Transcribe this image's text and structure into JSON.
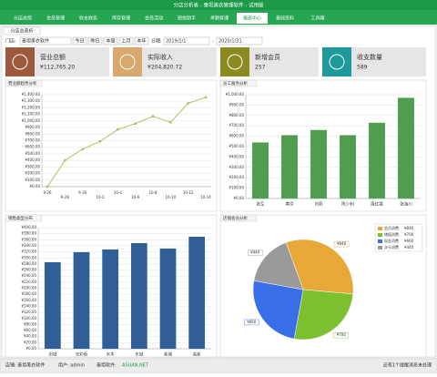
{
  "window_title": "分店分析表 - 泰坦美衣管理软件 - 试用版",
  "menu": [
    "分店总揽",
    "会员管理",
    "收支财务",
    "库存管理",
    "会员活动",
    "短信助手",
    "考勤管理",
    "报表中心",
    "基础资料",
    "工具箱"
  ],
  "active_menu": 7,
  "tab": "分店总表析",
  "toolbar": {
    "store_label": "门店:",
    "store": "泰坦美衣软件",
    "buttons": [
      "今日",
      "昨日",
      "本周",
      "上月",
      "本年"
    ],
    "date_label": "日期:",
    "date_from": "2019/1/1",
    "date_sep": "-",
    "date_to": "2020/1/31"
  },
  "kpis": [
    {
      "label": "营业总额",
      "value": "¥112,765.20",
      "color": "#9c5a3c"
    },
    {
      "label": "实际收入",
      "value": "¥204,820.72",
      "color": "#d8a86c"
    },
    {
      "label": "新增会员",
      "value": "257",
      "color": "#8a8a1e"
    },
    {
      "label": "收支数量",
      "value": "589",
      "color": "#1f9a9a"
    }
  ],
  "chart_data": [
    {
      "type": "line",
      "title": "营业额趋势分析",
      "categories": [
        "9-26",
        "9-28",
        "9-30",
        "10-2",
        "10-4",
        "10-6",
        "10-8",
        "10-10",
        "10-12",
        "10-14"
      ],
      "values": [
        0,
        400,
        570,
        690,
        870,
        960,
        1070,
        980,
        1270,
        1360
      ],
      "color": "#a9c46a",
      "ylim": [
        0,
        1400
      ],
      "yticks": [
        {
          "value": 0,
          "label": "¥0.00"
        },
        {
          "value": 100,
          "label": "¥100.00"
        },
        {
          "value": 200,
          "label": "¥200.00"
        },
        {
          "value": 300,
          "label": "¥300.00"
        },
        {
          "value": 400,
          "label": "¥400.00"
        },
        {
          "value": 500,
          "label": "¥500.00"
        },
        {
          "value": 600,
          "label": "¥600.00"
        },
        {
          "value": 700,
          "label": "¥700.00"
        },
        {
          "value": 800,
          "label": "¥800.00"
        },
        {
          "value": 900,
          "label": "¥900.00"
        },
        {
          "value": 1000,
          "label": "¥1,000.00"
        },
        {
          "value": 1100,
          "label": "¥1,100.00"
        },
        {
          "value": 1200,
          "label": "¥1,200.00"
        },
        {
          "value": 1300,
          "label": "¥1,300.00"
        },
        {
          "value": 1400,
          "label": "¥1,400.00"
        }
      ],
      "grid": true
    },
    {
      "type": "bar",
      "title": "员工服务分析",
      "categories": [
        "张军",
        "黄玲",
        "刘莉",
        "陈少利",
        "唐红霞",
        "张海川"
      ],
      "values": [
        540,
        610,
        660,
        610,
        730,
        970
      ],
      "color": "#4e9e4e",
      "ylim": [
        0,
        1000
      ],
      "yticks": [
        {
          "value": 0,
          "label": "¥0.00"
        },
        {
          "value": 100,
          "label": "¥100.00"
        },
        {
          "value": 200,
          "label": "¥200.00"
        },
        {
          "value": 300,
          "label": "¥300.00"
        },
        {
          "value": 400,
          "label": "¥400.00"
        },
        {
          "value": 500,
          "label": "¥500.00"
        },
        {
          "value": 600,
          "label": "¥600.00"
        },
        {
          "value": 700,
          "label": "¥700.00"
        },
        {
          "value": 800,
          "label": "¥800.00"
        },
        {
          "value": 900,
          "label": "¥900.00"
        },
        {
          "value": 1000,
          "label": "¥1,000.00"
        }
      ],
      "grid": true
    },
    {
      "type": "bar",
      "title": "销售类型分布",
      "categories": [
        "旧城",
        "光彩街",
        "水木",
        "东城",
        "新城",
        "高新"
      ],
      "values": [
        286,
        319,
        328,
        349,
        331,
        370
      ],
      "color": "#2f5f96",
      "ylim": [
        0,
        400
      ],
      "yticks": [
        {
          "value": 0,
          "label": "¥0.00"
        },
        {
          "value": 20,
          "label": "¥20.00"
        },
        {
          "value": 40,
          "label": "¥40.00"
        },
        {
          "value": 60,
          "label": "¥60.00"
        },
        {
          "value": 80,
          "label": "¥80.00"
        },
        {
          "value": 100,
          "label": "¥100.00"
        },
        {
          "value": 120,
          "label": "¥120.00"
        },
        {
          "value": 140,
          "label": "¥140.00"
        },
        {
          "value": 160,
          "label": "¥160.00"
        },
        {
          "value": 180,
          "label": "¥180.00"
        },
        {
          "value": 200,
          "label": "¥200.00"
        },
        {
          "value": 220,
          "label": "¥220.00"
        },
        {
          "value": 240,
          "label": "¥240.00"
        },
        {
          "value": 260,
          "label": "¥260.00"
        },
        {
          "value": 280,
          "label": "¥280.00"
        },
        {
          "value": 300,
          "label": "¥300.00"
        },
        {
          "value": 320,
          "label": "¥320.00"
        },
        {
          "value": 340,
          "label": "¥340.00"
        },
        {
          "value": 360,
          "label": "¥360.00"
        },
        {
          "value": 380,
          "label": "¥380.00"
        },
        {
          "value": 400,
          "label": "¥400.00"
        }
      ],
      "grid": true
    },
    {
      "type": "pie",
      "title": "店铺会员分析",
      "categories": [
        "会员消费",
        "储值消费",
        "现金消费",
        "次卡消费"
      ],
      "values": [
        846,
        700,
        660,
        440
      ],
      "value_labels": [
        "¥846",
        "¥700",
        "¥660",
        "¥440"
      ],
      "colors": [
        "#e8a838",
        "#7cbf2f",
        "#3a6ee8",
        "#9a9a9a"
      ],
      "legend": "upper right"
    }
  ],
  "status": {
    "store": "店铺: 泰坦美衣软件",
    "user": "用户: admin",
    "brand": "泰坦软件:",
    "link": "ASUAN.NET",
    "message": "还有1个提醒消息未处理"
  }
}
